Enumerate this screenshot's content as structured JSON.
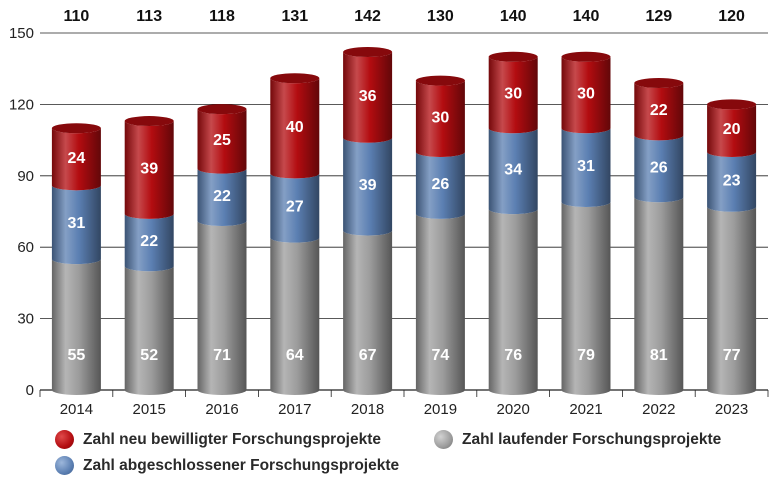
{
  "chart_data": {
    "type": "bar",
    "stacked": true,
    "bar_shape": "cylinder",
    "categories": [
      "2014",
      "2015",
      "2016",
      "2017",
      "2018",
      "2019",
      "2020",
      "2021",
      "2022",
      "2023"
    ],
    "series": [
      {
        "name": "Zahl laufender Forschungsprojekte",
        "color": "#9c9c9c",
        "values": [
          55,
          52,
          71,
          64,
          67,
          74,
          76,
          79,
          81,
          77
        ]
      },
      {
        "name": "Zahl abgeschlossener Forschungsprojekte",
        "color": "#5b7fb2",
        "values": [
          31,
          22,
          22,
          27,
          39,
          26,
          34,
          31,
          26,
          23
        ]
      },
      {
        "name": "Zahl neu bewilligter Forschungsprojekte",
        "color": "#b30c10",
        "values": [
          24,
          39,
          25,
          40,
          36,
          30,
          30,
          30,
          22,
          20
        ]
      }
    ],
    "totals": [
      110,
      113,
      118,
      131,
      142,
      130,
      140,
      140,
      129,
      120
    ],
    "ylim": [
      0,
      150
    ],
    "yticks": [
      0,
      30,
      60,
      90,
      120,
      150
    ],
    "grid": true,
    "legend_position": "bottom",
    "title": "",
    "xlabel": "",
    "ylabel": ""
  },
  "legend": {
    "new": "Zahl neu bewilligter Forschungsprojekte",
    "completed": "Zahl abgeschlossener Forschungsprojekte",
    "running": "Zahl laufender Forschungsprojekte"
  },
  "colors": {
    "running": "#9c9c9c",
    "completed": "#5b7fb2",
    "new": "#b30c10",
    "grid": "#222222"
  }
}
